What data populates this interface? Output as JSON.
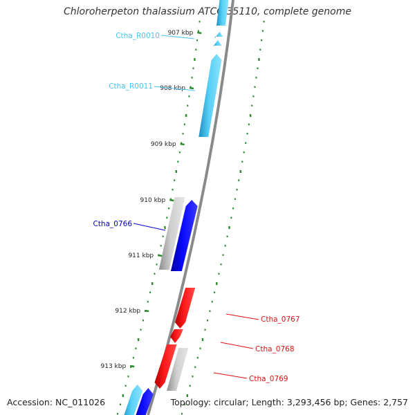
{
  "title": "Chloroherpeton thalassium ATCC 35110, complete genome",
  "accession": "Accession: NC_011026",
  "summary": "Topology: circular; Length: 3,293,456 bp; Genes: 2,757",
  "colors": {
    "background": "#ffffff",
    "backbone": "#8a8a8a",
    "rna": "#45c6f2",
    "forward_cds": "#0000ee",
    "reverse_cds": "#ee1111",
    "neutral_gene": "#b9b9b9",
    "gc_skew_dashes": "#2c8a2c"
  },
  "ticks": [
    {
      "label": "907 kbp"
    },
    {
      "label": "908 kbp"
    },
    {
      "label": "909 kbp"
    },
    {
      "label": "910 kbp"
    },
    {
      "label": "911 kbp"
    },
    {
      "label": "912 kbp"
    },
    {
      "label": "913 kbp"
    }
  ],
  "gene_labels": [
    {
      "text": "Ctha_R0010",
      "color": "#45c6f2"
    },
    {
      "text": "Ctha_R0011",
      "color": "#45c6f2"
    },
    {
      "text": "Ctha_0766",
      "color": "#0000cc"
    },
    {
      "text": "Ctha_0767",
      "color": "#dd1111"
    },
    {
      "text": "Ctha_0768",
      "color": "#dd1111"
    },
    {
      "text": "Ctha_0769",
      "color": "#dd1111"
    }
  ],
  "features": [
    {
      "name": "rna-feature-top",
      "type": "rna"
    },
    {
      "name": "rna-small-arrow-1",
      "type": "rna"
    },
    {
      "name": "rna-small-arrow-2",
      "type": "rna"
    },
    {
      "name": "rna-Ctha_R0011",
      "type": "rna"
    },
    {
      "name": "neutral-gene-910",
      "type": "neutral_gene"
    },
    {
      "name": "forward-Ctha_0766",
      "type": "forward_cds"
    },
    {
      "name": "reverse-Ctha_0767",
      "type": "reverse_cds"
    },
    {
      "name": "reverse-Ctha_0768-small",
      "type": "reverse_cds"
    },
    {
      "name": "reverse-Ctha_0768",
      "type": "reverse_cds"
    },
    {
      "name": "neutral-gene-913",
      "type": "neutral_gene"
    },
    {
      "name": "rna-bottom",
      "type": "rna"
    },
    {
      "name": "forward-bottom",
      "type": "forward_cds"
    }
  ]
}
